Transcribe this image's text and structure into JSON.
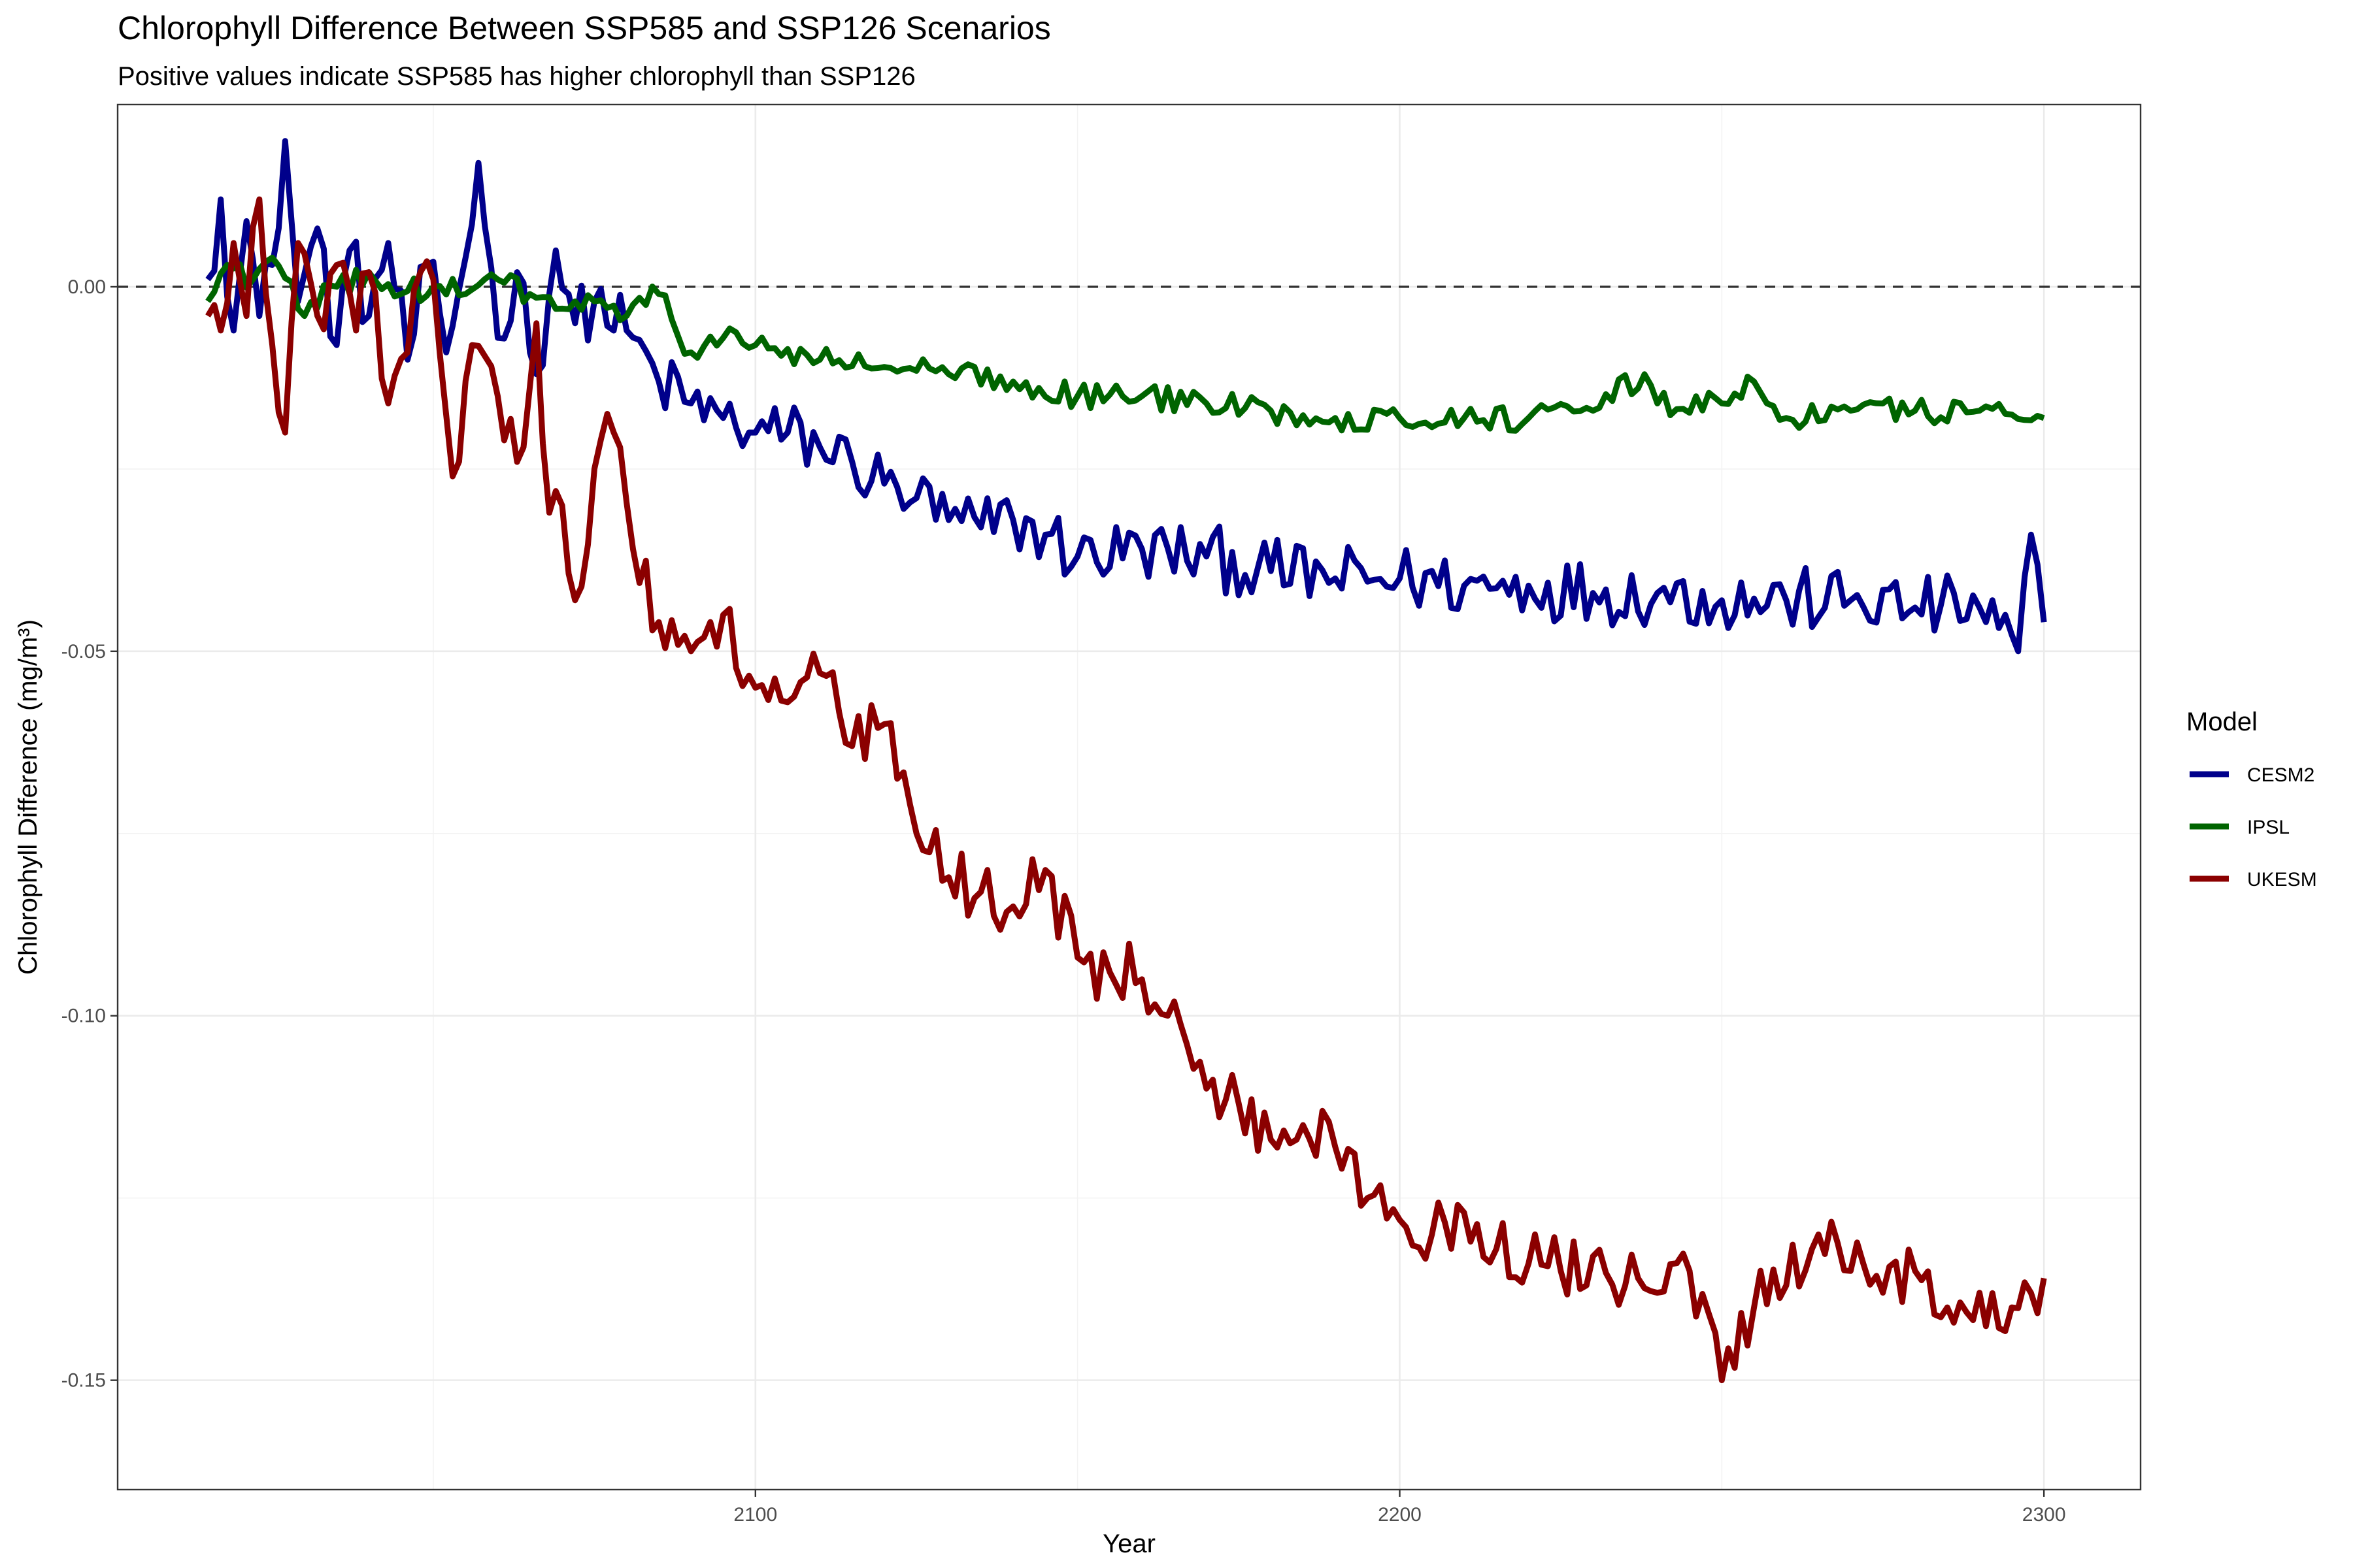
{
  "chart_data": {
    "type": "line",
    "title": "Chlorophyll Difference Between SSP585 and SSP126 Scenarios",
    "subtitle": "Positive values indicate SSP585 has higher chlorophyll than SSP126",
    "xlabel": "Year",
    "ylabel": "Chlorophyll Difference (mg/m³)",
    "xlim": [
      2001,
      2315
    ],
    "ylim": [
      -0.165,
      0.025
    ],
    "x_ticks": [
      2100,
      2200,
      2300
    ],
    "x_tick_labels": [
      "2100",
      "2200",
      "2300"
    ],
    "y_ticks": [
      0,
      -0.05,
      -0.1,
      -0.15
    ],
    "y_tick_labels": [
      "0.00",
      "-0.05",
      "-0.10",
      "-0.15"
    ],
    "reference_line": {
      "y": 0,
      "style": "dashed"
    },
    "grid": true,
    "legend": {
      "title": "Model",
      "position": "right"
    },
    "x_start": 2015,
    "x_end": 2300,
    "series": [
      {
        "name": "CESM2",
        "color": "#00008b",
        "keypoints": [
          [
            2015,
            0.001
          ],
          [
            2017,
            0.012
          ],
          [
            2019,
            -0.006
          ],
          [
            2021,
            0.009
          ],
          [
            2023,
            -0.004
          ],
          [
            2025,
            0.003
          ],
          [
            2027,
            0.02
          ],
          [
            2029,
            -0.002
          ],
          [
            2032,
            0.008
          ],
          [
            2035,
            -0.008
          ],
          [
            2037,
            0.005
          ],
          [
            2040,
            -0.004
          ],
          [
            2043,
            0.006
          ],
          [
            2046,
            -0.01
          ],
          [
            2049,
            0.003
          ],
          [
            2052,
            -0.009
          ],
          [
            2055,
            0.004
          ],
          [
            2057,
            0.017
          ],
          [
            2060,
            -0.007
          ],
          [
            2063,
            0.002
          ],
          [
            2066,
            -0.012
          ],
          [
            2069,
            0.005
          ],
          [
            2072,
            -0.005
          ],
          [
            2075,
            -0.002
          ],
          [
            2080,
            -0.006
          ],
          [
            2085,
            -0.013
          ],
          [
            2090,
            -0.016
          ],
          [
            2095,
            -0.018
          ],
          [
            2100,
            -0.02
          ],
          [
            2105,
            -0.02
          ],
          [
            2110,
            -0.022
          ],
          [
            2115,
            -0.024
          ],
          [
            2120,
            -0.027
          ],
          [
            2125,
            -0.029
          ],
          [
            2130,
            -0.032
          ],
          [
            2135,
            -0.033
          ],
          [
            2140,
            -0.032
          ],
          [
            2145,
            -0.034
          ],
          [
            2150,
            -0.037
          ],
          [
            2160,
            -0.036
          ],
          [
            2170,
            -0.037
          ],
          [
            2180,
            -0.039
          ],
          [
            2190,
            -0.04
          ],
          [
            2200,
            -0.04
          ],
          [
            2210,
            -0.041
          ],
          [
            2220,
            -0.041
          ],
          [
            2230,
            -0.042
          ],
          [
            2240,
            -0.042
          ],
          [
            2250,
            -0.043
          ],
          [
            2260,
            -0.043
          ],
          [
            2270,
            -0.043
          ],
          [
            2280,
            -0.044
          ],
          [
            2290,
            -0.044
          ],
          [
            2296,
            -0.05
          ],
          [
            2298,
            -0.034
          ],
          [
            2300,
            -0.046
          ]
        ],
        "noise": 0.0045
      },
      {
        "name": "IPSL",
        "color": "#006400",
        "keypoints": [
          [
            2015,
            -0.002
          ],
          [
            2018,
            0.003
          ],
          [
            2022,
            0.001
          ],
          [
            2025,
            0.004
          ],
          [
            2030,
            -0.004
          ],
          [
            2035,
            0.0
          ],
          [
            2040,
            0.002
          ],
          [
            2045,
            -0.001
          ],
          [
            2050,
            0.0
          ],
          [
            2055,
            -0.001
          ],
          [
            2060,
            0.001
          ],
          [
            2065,
            -0.001
          ],
          [
            2070,
            -0.003
          ],
          [
            2075,
            -0.002
          ],
          [
            2080,
            -0.004
          ],
          [
            2085,
            -0.001
          ],
          [
            2090,
            -0.009
          ],
          [
            2095,
            -0.007
          ],
          [
            2100,
            -0.008
          ],
          [
            2110,
            -0.01
          ],
          [
            2120,
            -0.011
          ],
          [
            2130,
            -0.012
          ],
          [
            2140,
            -0.013
          ],
          [
            2150,
            -0.015
          ],
          [
            2160,
            -0.015
          ],
          [
            2170,
            -0.016
          ],
          [
            2180,
            -0.017
          ],
          [
            2190,
            -0.018
          ],
          [
            2200,
            -0.018
          ],
          [
            2210,
            -0.018
          ],
          [
            2220,
            -0.018
          ],
          [
            2230,
            -0.017
          ],
          [
            2238,
            -0.012
          ],
          [
            2240,
            -0.016
          ],
          [
            2250,
            -0.016
          ],
          [
            2255,
            -0.013
          ],
          [
            2260,
            -0.018
          ],
          [
            2270,
            -0.017
          ],
          [
            2280,
            -0.017
          ],
          [
            2290,
            -0.017
          ],
          [
            2300,
            -0.018
          ]
        ],
        "noise": 0.0018
      },
      {
        "name": "UKESM",
        "color": "#8b0000",
        "keypoints": [
          [
            2015,
            -0.004
          ],
          [
            2017,
            -0.006
          ],
          [
            2019,
            0.006
          ],
          [
            2021,
            -0.004
          ],
          [
            2023,
            0.012
          ],
          [
            2025,
            -0.008
          ],
          [
            2027,
            -0.02
          ],
          [
            2029,
            0.006
          ],
          [
            2032,
            -0.004
          ],
          [
            2035,
            0.003
          ],
          [
            2038,
            -0.006
          ],
          [
            2040,
            0.002
          ],
          [
            2043,
            -0.016
          ],
          [
            2046,
            -0.009
          ],
          [
            2048,
            0.002
          ],
          [
            2050,
            0.001
          ],
          [
            2053,
            -0.026
          ],
          [
            2056,
            -0.008
          ],
          [
            2060,
            -0.015
          ],
          [
            2064,
            -0.022
          ],
          [
            2066,
            -0.005
          ],
          [
            2068,
            -0.031
          ],
          [
            2070,
            -0.03
          ],
          [
            2072,
            -0.043
          ],
          [
            2075,
            -0.025
          ],
          [
            2078,
            -0.02
          ],
          [
            2081,
            -0.036
          ],
          [
            2085,
            -0.046
          ],
          [
            2090,
            -0.05
          ],
          [
            2095,
            -0.045
          ],
          [
            2100,
            -0.055
          ],
          [
            2105,
            -0.057
          ],
          [
            2110,
            -0.053
          ],
          [
            2115,
            -0.063
          ],
          [
            2120,
            -0.06
          ],
          [
            2125,
            -0.075
          ],
          [
            2130,
            -0.081
          ],
          [
            2135,
            -0.083
          ],
          [
            2140,
            -0.085
          ],
          [
            2145,
            -0.08
          ],
          [
            2150,
            -0.092
          ],
          [
            2155,
            -0.094
          ],
          [
            2160,
            -0.095
          ],
          [
            2164,
            -0.1
          ],
          [
            2167,
            -0.104
          ],
          [
            2170,
            -0.11
          ],
          [
            2175,
            -0.112
          ],
          [
            2180,
            -0.117
          ],
          [
            2185,
            -0.115
          ],
          [
            2190,
            -0.118
          ],
          [
            2195,
            -0.125
          ],
          [
            2200,
            -0.128
          ],
          [
            2205,
            -0.13
          ],
          [
            2210,
            -0.127
          ],
          [
            2215,
            -0.132
          ],
          [
            2220,
            -0.134
          ],
          [
            2225,
            -0.135
          ],
          [
            2230,
            -0.133
          ],
          [
            2235,
            -0.137
          ],
          [
            2240,
            -0.138
          ],
          [
            2245,
            -0.135
          ],
          [
            2250,
            -0.15
          ],
          [
            2255,
            -0.14
          ],
          [
            2260,
            -0.137
          ],
          [
            2265,
            -0.13
          ],
          [
            2270,
            -0.135
          ],
          [
            2275,
            -0.138
          ],
          [
            2280,
            -0.135
          ],
          [
            2285,
            -0.14
          ],
          [
            2290,
            -0.138
          ],
          [
            2295,
            -0.14
          ],
          [
            2300,
            -0.136
          ]
        ],
        "noise": 0.0045
      }
    ]
  }
}
